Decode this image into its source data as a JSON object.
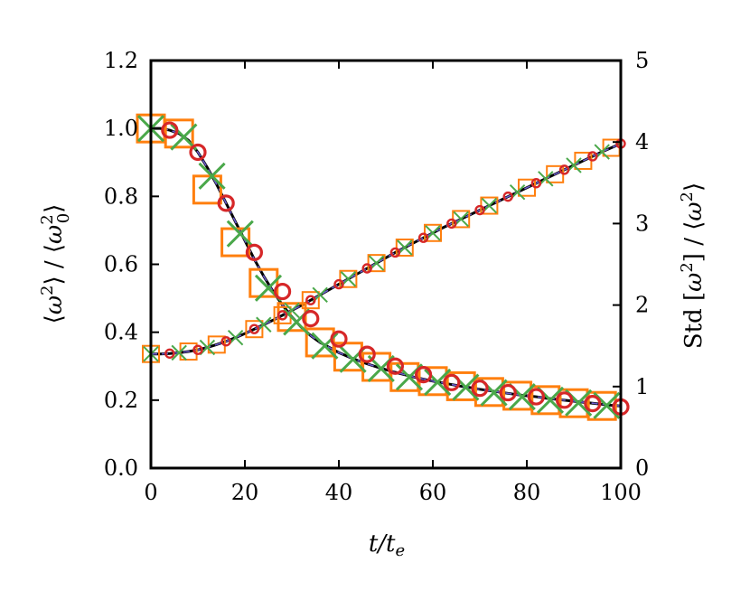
{
  "chart_data": {
    "type": "line",
    "xlabel": "t/t_e",
    "ylabel_left": "⟨ω²⟩ / ⟨ω₀²⟩",
    "ylabel_right": "Std [ω²] / ⟨ω²⟩",
    "xlim": [
      0,
      100
    ],
    "ylim_left": [
      0,
      1.2
    ],
    "ylim_right": [
      0,
      5
    ],
    "x_ticks": [
      "0",
      "20",
      "40",
      "60",
      "80",
      "100"
    ],
    "y_left_ticks": [
      "0.0",
      "0.2",
      "0.4",
      "0.6",
      "0.8",
      "1.0",
      "1.2"
    ],
    "y_right_ticks": [
      "0",
      "1",
      "2",
      "3",
      "4",
      "5"
    ],
    "grid": false,
    "legend": "none",
    "series": [
      {
        "axis": "left",
        "line_color": "#000000",
        "dash_color": "#6a5acd",
        "x": [
          0,
          2,
          4,
          6,
          8,
          10,
          12,
          14,
          16,
          18,
          20,
          22,
          24,
          26,
          28,
          30,
          32,
          34,
          36,
          38,
          40,
          42,
          44,
          46,
          48,
          50,
          52,
          54,
          56,
          58,
          60,
          62,
          64,
          66,
          68,
          70,
          72,
          74,
          76,
          78,
          80,
          82,
          84,
          86,
          88,
          90,
          92,
          94,
          96,
          98,
          100
        ],
        "y": [
          1.0,
          1.0,
          0.995,
          0.985,
          0.965,
          0.93,
          0.885,
          0.835,
          0.78,
          0.725,
          0.67,
          0.615,
          0.565,
          0.52,
          0.48,
          0.445,
          0.415,
          0.39,
          0.37,
          0.355,
          0.34,
          0.328,
          0.317,
          0.307,
          0.298,
          0.29,
          0.282,
          0.275,
          0.268,
          0.262,
          0.256,
          0.251,
          0.246,
          0.241,
          0.237,
          0.232,
          0.228,
          0.224,
          0.22,
          0.216,
          0.213,
          0.21,
          0.206,
          0.203,
          0.2,
          0.197,
          0.194,
          0.191,
          0.188,
          0.185,
          0.183
        ]
      },
      {
        "axis": "right",
        "line_color": "#000000",
        "dash_color": "#6a5acd",
        "x": [
          0,
          2,
          4,
          6,
          8,
          10,
          12,
          14,
          16,
          18,
          20,
          22,
          24,
          26,
          28,
          30,
          32,
          34,
          36,
          38,
          40,
          42,
          44,
          46,
          48,
          50,
          52,
          54,
          56,
          58,
          60,
          62,
          64,
          66,
          68,
          70,
          72,
          74,
          76,
          78,
          80,
          82,
          84,
          86,
          88,
          90,
          92,
          94,
          96,
          98,
          100
        ],
        "y": [
          1.4,
          1.4,
          1.405,
          1.415,
          1.43,
          1.45,
          1.48,
          1.515,
          1.555,
          1.6,
          1.65,
          1.705,
          1.76,
          1.815,
          1.875,
          1.935,
          1.995,
          2.06,
          2.125,
          2.19,
          2.255,
          2.32,
          2.385,
          2.45,
          2.515,
          2.58,
          2.645,
          2.705,
          2.765,
          2.825,
          2.885,
          2.945,
          3.0,
          3.055,
          3.11,
          3.165,
          3.22,
          3.275,
          3.33,
          3.385,
          3.44,
          3.495,
          3.55,
          3.605,
          3.66,
          3.715,
          3.77,
          3.825,
          3.88,
          3.93,
          3.98
        ]
      }
    ],
    "markers": [
      {
        "name": "squares",
        "shape": "square",
        "color": "#ff7f0e",
        "sets": [
          {
            "axis": "left",
            "x": [
              0,
              6,
              12,
              18,
              24,
              30,
              36,
              42,
              48,
              54,
              60,
              66,
              72,
              78,
              84,
              90,
              96
            ],
            "y": [
              1.0,
              0.985,
              0.82,
              0.665,
              0.545,
              0.445,
              0.37,
              0.328,
              0.298,
              0.268,
              0.256,
              0.241,
              0.224,
              0.213,
              0.2,
              0.191,
              0.183
            ]
          },
          {
            "axis": "right",
            "x": [
              0,
              8,
              14,
              22,
              28,
              34,
              42,
              48,
              54,
              60,
              66,
              72,
              80,
              86,
              92,
              98
            ],
            "y": [
              1.4,
              1.43,
              1.515,
              1.705,
              1.875,
              2.06,
              2.32,
              2.515,
              2.705,
              2.885,
              3.055,
              3.22,
              3.44,
              3.605,
              3.77,
              3.93
            ]
          }
        ]
      },
      {
        "name": "crosses",
        "shape": "x",
        "color": "#4aa84a",
        "sets": [
          {
            "axis": "left",
            "x": [
              0,
              7,
              13,
              19,
              25,
              31,
              37,
              43,
              49,
              55,
              61,
              67,
              73,
              79,
              85,
              91,
              97
            ],
            "y": [
              1.0,
              0.975,
              0.86,
              0.69,
              0.53,
              0.43,
              0.36,
              0.32,
              0.293,
              0.268,
              0.253,
              0.238,
              0.222,
              0.21,
              0.2,
              0.192,
              0.184
            ]
          },
          {
            "axis": "right",
            "x": [
              0,
              6,
              12,
              18,
              24,
              30,
              36,
              42,
              48,
              54,
              60,
              66,
              72,
              78,
              84,
              90,
              96
            ],
            "y": [
              1.4,
              1.415,
              1.48,
              1.6,
              1.76,
              1.935,
              2.125,
              2.32,
              2.515,
              2.705,
              2.885,
              3.055,
              3.22,
              3.385,
              3.55,
              3.715,
              3.88
            ]
          }
        ]
      },
      {
        "name": "circles",
        "shape": "circle",
        "color": "#d62728",
        "sets": [
          {
            "axis": "left",
            "x": [
              4,
              10,
              16,
              22,
              28,
              34,
              40,
              46,
              52,
              58,
              64,
              70,
              76,
              82,
              88,
              94,
              100
            ],
            "y": [
              0.995,
              0.93,
              0.78,
              0.635,
              0.52,
              0.44,
              0.38,
              0.335,
              0.3,
              0.275,
              0.252,
              0.235,
              0.222,
              0.21,
              0.2,
              0.19,
              0.18
            ]
          },
          {
            "axis": "right",
            "x": [
              4,
              10,
              16,
              22,
              28,
              34,
              40,
              46,
              52,
              58,
              64,
              70,
              76,
              82,
              88,
              94,
              100
            ],
            "y": [
              1.405,
              1.45,
              1.555,
              1.705,
              1.875,
              2.06,
              2.255,
              2.45,
              2.645,
              2.825,
              3.0,
              3.165,
              3.33,
              3.495,
              3.66,
              3.825,
              3.98
            ]
          }
        ]
      }
    ]
  }
}
